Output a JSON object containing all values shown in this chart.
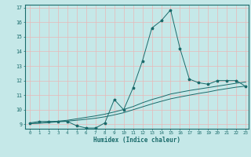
{
  "xlabel": "Humidex (Indice chaleur)",
  "bg_color": "#c5e8e8",
  "grid_color": "#e8b8b8",
  "line_color": "#1a6b6b",
  "xlim": [
    -0.5,
    23.3
  ],
  "ylim": [
    8.7,
    17.2
  ],
  "yticks": [
    9,
    10,
    11,
    12,
    13,
    14,
    15,
    16,
    17
  ],
  "xticks": [
    0,
    1,
    2,
    3,
    4,
    5,
    6,
    7,
    8,
    9,
    10,
    11,
    12,
    13,
    14,
    15,
    16,
    17,
    18,
    19,
    20,
    21,
    22,
    23
  ],
  "line1_x": [
    0,
    1,
    2,
    3,
    4,
    5,
    6,
    7,
    8,
    9,
    10,
    11,
    12,
    13,
    14,
    15,
    16,
    17,
    18,
    19,
    20,
    21,
    22,
    23
  ],
  "line1_y": [
    9.1,
    9.2,
    9.2,
    9.2,
    9.2,
    8.9,
    8.75,
    8.75,
    9.1,
    10.7,
    10.0,
    11.5,
    13.35,
    15.6,
    16.1,
    16.85,
    14.2,
    12.1,
    11.85,
    11.75,
    12.0,
    12.0,
    12.0,
    11.6
  ],
  "line2_x": [
    0,
    1,
    2,
    3,
    4,
    5,
    6,
    7,
    8,
    9,
    10,
    11,
    12,
    13,
    14,
    15,
    16,
    17,
    18,
    19,
    20,
    21,
    22,
    23
  ],
  "line2_y": [
    9.05,
    9.08,
    9.12,
    9.18,
    9.22,
    9.28,
    9.35,
    9.42,
    9.52,
    9.65,
    9.8,
    10.0,
    10.2,
    10.4,
    10.58,
    10.75,
    10.88,
    11.0,
    11.12,
    11.22,
    11.35,
    11.45,
    11.55,
    11.62
  ],
  "line3_x": [
    0,
    1,
    2,
    3,
    4,
    5,
    6,
    7,
    8,
    9,
    10,
    11,
    12,
    13,
    14,
    15,
    16,
    17,
    18,
    19,
    20,
    21,
    22,
    23
  ],
  "line3_y": [
    9.05,
    9.1,
    9.15,
    9.22,
    9.28,
    9.38,
    9.48,
    9.58,
    9.7,
    9.85,
    10.02,
    10.22,
    10.48,
    10.7,
    10.88,
    11.08,
    11.2,
    11.32,
    11.42,
    11.52,
    11.62,
    11.72,
    11.82,
    11.9
  ]
}
